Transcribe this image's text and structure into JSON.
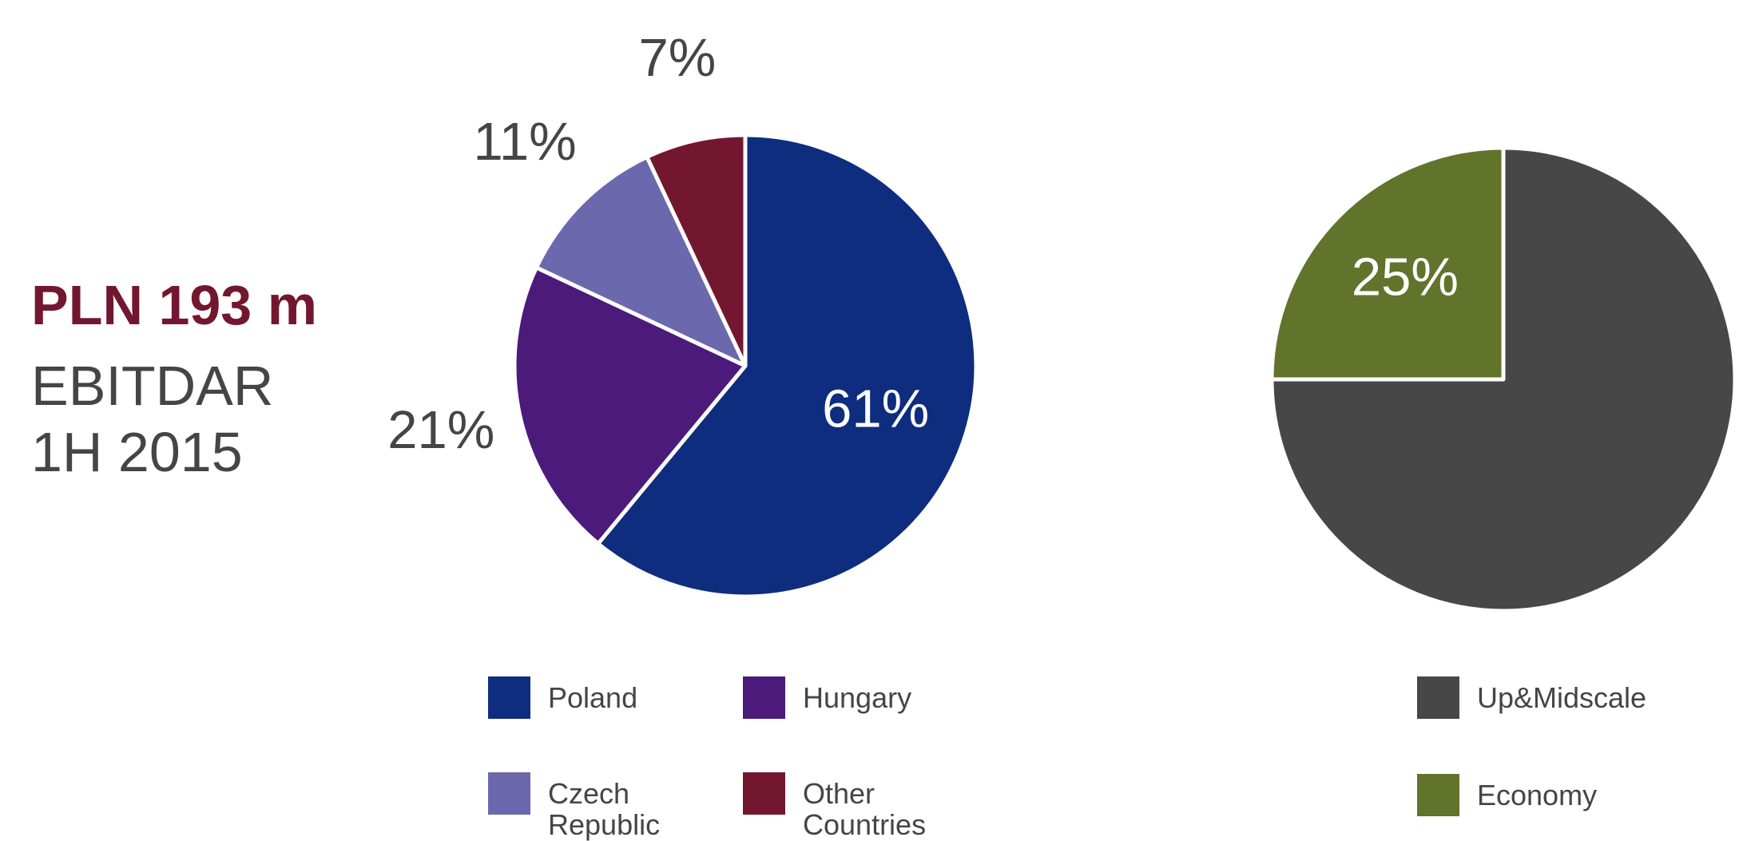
{
  "summary": {
    "amount": "PLN 193 m",
    "metric": "EBITDAR",
    "period": "1H 2015"
  },
  "chart_data": [
    {
      "type": "pie",
      "categories": [
        "Poland",
        "Hungary",
        "Czech Republic",
        "Other Countries"
      ],
      "values": [
        61,
        21,
        11,
        7
      ],
      "value_labels": [
        "61%",
        "21%",
        "11%",
        "7%"
      ],
      "colors": [
        "#0f2d7e",
        "#4b1a7b",
        "#6b68ad",
        "#731730"
      ],
      "legend": "bottom"
    },
    {
      "type": "pie",
      "categories": [
        "Up&Midscale",
        "Economy"
      ],
      "values": [
        75,
        25
      ],
      "value_labels": [
        null,
        "25%"
      ],
      "colors": [
        "#474748",
        "#62732b"
      ],
      "legend": "bottom"
    }
  ]
}
